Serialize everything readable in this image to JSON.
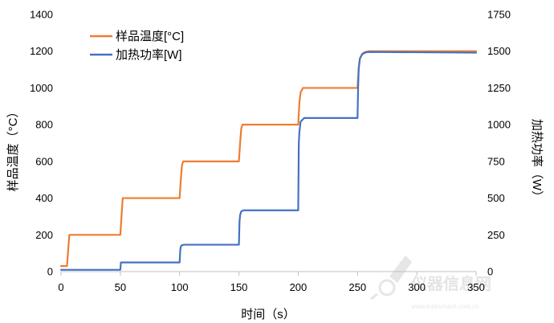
{
  "chart_data": {
    "type": "line",
    "title": "",
    "xlabel": "时间（s）",
    "ylabel_left": "样品温度（°C）",
    "ylabel_right": "加热功率（W）",
    "xlim": [
      0,
      350
    ],
    "ylim_left": [
      0,
      1400
    ],
    "ylim_right": [
      0,
      1750
    ],
    "x_ticks": [
      "0",
      "50",
      "100",
      "150",
      "200",
      "250",
      "300",
      "350"
    ],
    "y_left_ticks": [
      "0",
      "200",
      "400",
      "600",
      "800",
      "1000",
      "1200",
      "1400"
    ],
    "y_right_ticks": [
      "0",
      "250",
      "500",
      "750",
      "1000",
      "1250",
      "1500",
      "1750"
    ],
    "grid": false,
    "legend_position": "top-left",
    "series": [
      {
        "name": "样品温度[°C]",
        "axis": "left",
        "color": "#ED7D31",
        "x": [
          0,
          5,
          7,
          50,
          51,
          52,
          100,
          101,
          102,
          103,
          150,
          151,
          152,
          153,
          200,
          201,
          202,
          204,
          250,
          251,
          252,
          254,
          256,
          260,
          350
        ],
        "y": [
          30,
          30,
          200,
          200,
          300,
          400,
          400,
          500,
          580,
          600,
          600,
          700,
          780,
          800,
          800,
          920,
          975,
          1000,
          1000,
          1110,
          1160,
          1185,
          1195,
          1200,
          1200
        ]
      },
      {
        "name": "加热功率[W]",
        "axis": "right",
        "color": "#4472C4",
        "x": [
          0,
          50,
          50.5,
          100,
          100.5,
          101,
          102,
          104,
          150,
          150.5,
          151,
          152,
          154,
          200,
          200.5,
          201,
          202,
          205,
          250,
          250.5,
          251,
          252,
          254,
          257,
          260,
          350
        ],
        "y": [
          12,
          12,
          62,
          62,
          140,
          170,
          180,
          183,
          183,
          340,
          385,
          410,
          417,
          417,
          880,
          950,
          1020,
          1045,
          1045,
          1250,
          1380,
          1450,
          1480,
          1492,
          1495,
          1490
        ]
      }
    ]
  },
  "watermark": {
    "text": "仪器信息网",
    "subtext": "www.instrument.com.cn"
  }
}
